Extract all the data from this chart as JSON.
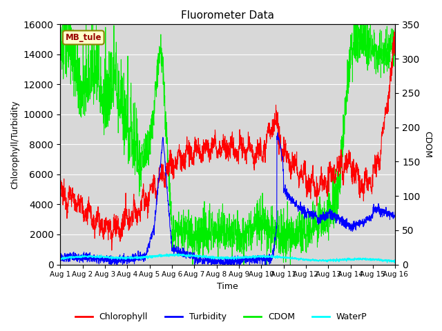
{
  "title": "Fluorometer Data",
  "xlabel": "Time",
  "ylabel_left": "Chlorophyll/Turbidity",
  "ylabel_right": "CDOM",
  "annotation": "MB_tule",
  "ylim_left": [
    0,
    16000
  ],
  "ylim_right": [
    0,
    350
  ],
  "yticks_left": [
    0,
    2000,
    4000,
    6000,
    8000,
    10000,
    12000,
    14000,
    16000
  ],
  "yticks_right": [
    0,
    50,
    100,
    150,
    200,
    250,
    300,
    350
  ],
  "xtick_labels": [
    "Aug 1",
    "Aug 2",
    "Aug 3",
    "Aug 4",
    "Aug 5",
    "Aug 6",
    "Aug 7",
    "Aug 8",
    "Aug 9",
    "Aug 10",
    "Aug 11",
    "Aug 12",
    "Aug 13",
    "Aug 14",
    "Aug 15",
    "Aug 16"
  ],
  "colors": {
    "chlorophyll": "red",
    "turbidity": "blue",
    "cdom": "#00ee00",
    "waterp": "cyan",
    "background": "#d8d8d8",
    "annotation_bg": "#ffffcc",
    "annotation_border": "#888800",
    "annotation_text": "#990000"
  },
  "legend_labels": [
    "Chlorophyll",
    "Turbidity",
    "CDOM",
    "WaterP"
  ],
  "n_points": 2000
}
